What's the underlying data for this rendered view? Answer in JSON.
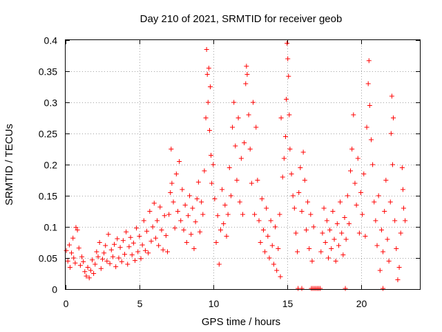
{
  "chart_data": {
    "type": "scatter",
    "title": "Day 210 of 2021, SRMTID for receiver geob",
    "xlabel": "GPS time / hours",
    "ylabel": "SRMTID / TECUs",
    "xlim": [
      0,
      24
    ],
    "ylim": [
      0,
      0.4
    ],
    "x_ticks": [
      0,
      5,
      10,
      15,
      20
    ],
    "x_tick_labels": [
      "0",
      "5",
      "10",
      "15",
      "20"
    ],
    "y_ticks": [
      0,
      0.05,
      0.1,
      0.15,
      0.2,
      0.25,
      0.3,
      0.35,
      0.4
    ],
    "y_tick_labels": [
      "0",
      "0.05",
      "0.1",
      "0.15",
      "0.2",
      "0.25",
      "0.3",
      "0.35",
      "0.4"
    ],
    "grid": true,
    "marker": "+",
    "color": "#ff0000",
    "series": [
      {
        "name": "SRMTID",
        "points": [
          [
            0.05,
            0.062
          ],
          [
            0.15,
            0.045
          ],
          [
            0.25,
            0.071
          ],
          [
            0.3,
            0.035
          ],
          [
            0.4,
            0.058
          ],
          [
            0.5,
            0.082
          ],
          [
            0.55,
            0.05
          ],
          [
            0.65,
            0.042
          ],
          [
            0.7,
            0.099
          ],
          [
            0.8,
            0.095
          ],
          [
            0.9,
            0.066
          ],
          [
            1.0,
            0.038
          ],
          [
            1.1,
            0.052
          ],
          [
            1.2,
            0.044
          ],
          [
            1.3,
            0.028
          ],
          [
            1.4,
            0.021
          ],
          [
            1.5,
            0.035
          ],
          [
            1.6,
            0.018
          ],
          [
            1.7,
            0.03
          ],
          [
            1.8,
            0.047
          ],
          [
            1.9,
            0.025
          ],
          [
            2.0,
            0.04
          ],
          [
            2.1,
            0.06
          ],
          [
            2.2,
            0.052
          ],
          [
            2.3,
            0.075
          ],
          [
            2.4,
            0.033
          ],
          [
            2.5,
            0.048
          ],
          [
            2.6,
            0.058
          ],
          [
            2.7,
            0.07
          ],
          [
            2.8,
            0.045
          ],
          [
            2.9,
            0.088
          ],
          [
            3.0,
            0.041
          ],
          [
            3.1,
            0.063
          ],
          [
            3.2,
            0.052
          ],
          [
            3.3,
            0.072
          ],
          [
            3.4,
            0.036
          ],
          [
            3.5,
            0.081
          ],
          [
            3.6,
            0.05
          ],
          [
            3.7,
            0.067
          ],
          [
            3.8,
            0.044
          ],
          [
            3.9,
            0.078
          ],
          [
            4.0,
            0.056
          ],
          [
            4.1,
            0.092
          ],
          [
            4.2,
            0.04
          ],
          [
            4.3,
            0.068
          ],
          [
            4.4,
            0.083
          ],
          [
            4.5,
            0.055
          ],
          [
            4.6,
            0.074
          ],
          [
            4.7,
            0.046
          ],
          [
            4.8,
            0.098
          ],
          [
            4.9,
            0.06
          ],
          [
            5.0,
            0.085
          ],
          [
            5.1,
            0.049
          ],
          [
            5.2,
            0.071
          ],
          [
            5.3,
            0.11
          ],
          [
            5.4,
            0.062
          ],
          [
            5.5,
            0.093
          ],
          [
            5.6,
            0.058
          ],
          [
            5.7,
            0.125
          ],
          [
            5.8,
            0.077
          ],
          [
            5.9,
            0.1
          ],
          [
            6.0,
            0.138
          ],
          [
            6.1,
            0.082
          ],
          [
            6.2,
            0.11
          ],
          [
            6.3,
            0.07
          ],
          [
            6.4,
            0.132
          ],
          [
            6.5,
            0.095
          ],
          [
            6.6,
            0.063
          ],
          [
            6.7,
            0.118
          ],
          [
            6.8,
            0.086
          ],
          [
            6.9,
            0.06
          ],
          [
            7.0,
            0.12
          ],
          [
            7.1,
            0.155
          ],
          [
            7.15,
            0.225
          ],
          [
            7.2,
            0.17
          ],
          [
            7.3,
            0.14
          ],
          [
            7.4,
            0.098
          ],
          [
            7.5,
            0.185
          ],
          [
            7.6,
            0.125
          ],
          [
            7.7,
            0.205
          ],
          [
            7.8,
            0.11
          ],
          [
            7.9,
            0.16
          ],
          [
            8.0,
            0.095
          ],
          [
            8.1,
            0.135
          ],
          [
            8.2,
            0.075
          ],
          [
            8.3,
            0.118
          ],
          [
            8.4,
            0.15
          ],
          [
            8.5,
            0.088
          ],
          [
            8.6,
            0.13
          ],
          [
            8.7,
            0.065
          ],
          [
            8.8,
            0.108
          ],
          [
            8.9,
            0.145
          ],
          [
            9.0,
            0.172
          ],
          [
            9.1,
            0.092
          ],
          [
            9.2,
            0.14
          ],
          [
            9.3,
            0.12
          ],
          [
            9.4,
            0.19
          ],
          [
            9.5,
            0.275
          ],
          [
            9.55,
            0.385
          ],
          [
            9.6,
            0.345
          ],
          [
            9.65,
            0.3
          ],
          [
            9.7,
            0.355
          ],
          [
            9.75,
            0.255
          ],
          [
            9.8,
            0.325
          ],
          [
            9.85,
            0.215
          ],
          [
            9.9,
            0.17
          ],
          [
            10.0,
            0.2
          ],
          [
            10.1,
            0.145
          ],
          [
            10.2,
            0.075
          ],
          [
            10.3,
            0.118
          ],
          [
            10.4,
            0.04
          ],
          [
            10.5,
            0.095
          ],
          [
            10.6,
            0.16
          ],
          [
            10.7,
            0.105
          ],
          [
            10.8,
            0.135
          ],
          [
            10.9,
            0.085
          ],
          [
            11.0,
            0.12
          ],
          [
            11.1,
            0.195
          ],
          [
            11.2,
            0.15
          ],
          [
            11.3,
            0.26
          ],
          [
            11.4,
            0.3
          ],
          [
            11.5,
            0.23
          ],
          [
            11.6,
            0.175
          ],
          [
            11.7,
            0.275
          ],
          [
            11.8,
            0.14
          ],
          [
            11.9,
            0.21
          ],
          [
            12.0,
            0.12
          ],
          [
            12.1,
            0.235
          ],
          [
            12.2,
            0.33
          ],
          [
            12.25,
            0.358
          ],
          [
            12.3,
            0.345
          ],
          [
            12.4,
            0.28
          ],
          [
            12.5,
            0.225
          ],
          [
            12.6,
            0.17
          ],
          [
            12.7,
            0.3
          ],
          [
            12.8,
            0.12
          ],
          [
            12.9,
            0.26
          ],
          [
            13.0,
            0.175
          ],
          [
            13.1,
            0.11
          ],
          [
            13.2,
            0.075
          ],
          [
            13.3,
            0.145
          ],
          [
            13.4,
            0.095
          ],
          [
            13.5,
            0.06
          ],
          [
            13.6,
            0.13
          ],
          [
            13.7,
            0.085
          ],
          [
            13.8,
            0.05
          ],
          [
            13.9,
            0.11
          ],
          [
            14.0,
            0.07
          ],
          [
            14.1,
            0.04
          ],
          [
            14.2,
            0.1
          ],
          [
            14.3,
            0.03
          ],
          [
            14.4,
            0.065
          ],
          [
            14.5,
            0.12
          ],
          [
            14.55,
            0.02
          ],
          [
            14.6,
            0.275
          ],
          [
            14.7,
            0.18
          ],
          [
            14.8,
            0.21
          ],
          [
            14.9,
            0.245
          ],
          [
            14.95,
            0.305
          ],
          [
            15.0,
            0.395
          ],
          [
            15.05,
            0.37
          ],
          [
            15.1,
            0.342
          ],
          [
            15.15,
            0.28
          ],
          [
            15.2,
            0.225
          ],
          [
            15.3,
            0.185
          ],
          [
            15.4,
            0.15
          ],
          [
            15.5,
            0.13
          ],
          [
            15.6,
            0.09
          ],
          [
            15.7,
            0.06
          ],
          [
            15.8,
            0.155
          ],
          [
            15.9,
            0.195
          ],
          [
            16.0,
            0.125
          ],
          [
            16.1,
            0.22
          ],
          [
            16.2,
            0.175
          ],
          [
            16.3,
            0.095
          ],
          [
            16.4,
            0.14
          ],
          [
            16.5,
            0.065
          ],
          [
            16.6,
            0.12
          ],
          [
            16.7,
            0.045
          ],
          [
            16.8,
            0.1
          ],
          [
            17.3,
            0.06
          ],
          [
            17.4,
            0.09
          ],
          [
            17.5,
            0.13
          ],
          [
            17.6,
            0.075
          ],
          [
            17.7,
            0.11
          ],
          [
            17.8,
            0.05
          ],
          [
            17.9,
            0.095
          ],
          [
            18.0,
            0.065
          ],
          [
            18.1,
            0.125
          ],
          [
            18.2,
            0.08
          ],
          [
            18.3,
            0.045
          ],
          [
            18.4,
            0.105
          ],
          [
            18.5,
            0.07
          ],
          [
            18.6,
            0.14
          ],
          [
            18.7,
            0.09
          ],
          [
            18.8,
            0.055
          ],
          [
            18.9,
            0.115
          ],
          [
            19.0,
            0.08
          ],
          [
            19.1,
            0.15
          ],
          [
            19.2,
            0.105
          ],
          [
            19.3,
            0.19
          ],
          [
            19.4,
            0.225
          ],
          [
            19.5,
            0.28
          ],
          [
            19.6,
            0.17
          ],
          [
            19.7,
            0.135
          ],
          [
            19.8,
            0.21
          ],
          [
            19.9,
            0.09
          ],
          [
            20.0,
            0.155
          ],
          [
            20.1,
            0.12
          ],
          [
            20.2,
            0.185
          ],
          [
            20.3,
            0.085
          ],
          [
            20.4,
            0.26
          ],
          [
            20.5,
            0.33
          ],
          [
            20.55,
            0.367
          ],
          [
            20.6,
            0.295
          ],
          [
            20.7,
            0.24
          ],
          [
            20.8,
            0.2
          ],
          [
            20.9,
            0.14
          ],
          [
            21.0,
            0.11
          ],
          [
            21.1,
            0.07
          ],
          [
            21.2,
            0.15
          ],
          [
            21.3,
            0.03
          ],
          [
            21.4,
            0.095
          ],
          [
            21.5,
            0.06
          ],
          [
            21.6,
            0.125
          ],
          [
            21.7,
            0.175
          ],
          [
            21.8,
            0.08
          ],
          [
            21.9,
            0.045
          ],
          [
            22.0,
            0.14
          ],
          [
            22.05,
            0.25
          ],
          [
            22.1,
            0.31
          ],
          [
            22.15,
            0.2
          ],
          [
            22.2,
            0.275
          ],
          [
            22.3,
            0.11
          ],
          [
            22.4,
            0.065
          ],
          [
            22.5,
            0.015
          ],
          [
            22.6,
            0.035
          ],
          [
            22.7,
            0.09
          ],
          [
            22.8,
            0.195
          ],
          [
            22.85,
            0.16
          ],
          [
            22.9,
            0.13
          ],
          [
            23.0,
            0.11
          ]
        ]
      }
    ],
    "zero_markers_x": [
      15.75,
      16.0,
      16.65,
      16.75,
      16.85,
      16.95,
      17.05,
      17.15,
      17.25,
      18.95,
      21.5
    ]
  }
}
